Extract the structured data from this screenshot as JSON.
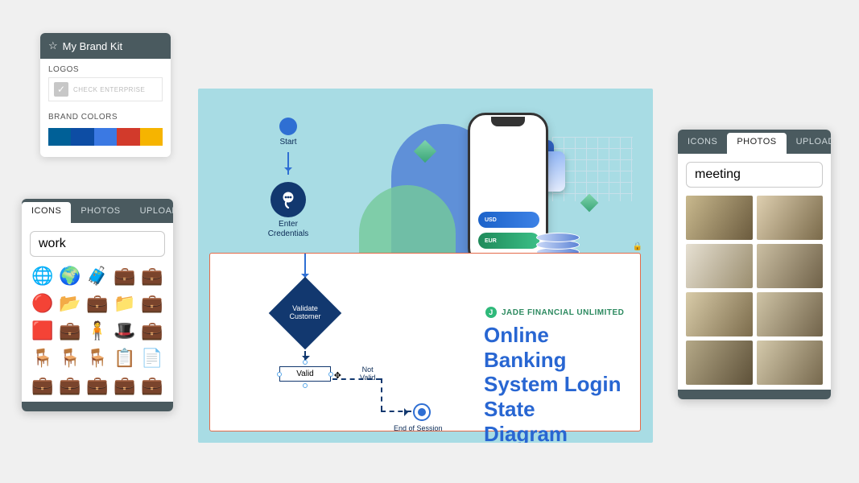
{
  "brandkit": {
    "title": "My Brand Kit",
    "section_logos": "LOGOS",
    "logo_caption": "CHECK ENTERPRISE",
    "section_colors": "BRAND COLORS",
    "colors": [
      "#006097",
      "#0d4da4",
      "#3b79e3",
      "#d23a2b",
      "#f6b400"
    ]
  },
  "icons_panel": {
    "tabs": {
      "icons": "ICONS",
      "photos": "PHOTOS",
      "uploads": "UPLOADS"
    },
    "active_tab": "ICONS",
    "search_value": "work",
    "grid_glyphs": [
      "🌐",
      "🌍",
      "🧳",
      "💼",
      "💼",
      "🔴",
      "📂",
      "💼",
      "📁",
      "💼",
      "🟥",
      "💼",
      "🧍",
      "🎩",
      "💼",
      "🪑",
      "🪑",
      "🪑",
      "📋",
      "📄",
      "💼",
      "💼",
      "💼",
      "💼",
      "💼"
    ]
  },
  "photos_panel": {
    "tabs": {
      "icons": "ICONS",
      "photos": "PHOTOS",
      "uploads": "UPLOADS"
    },
    "active_tab": "PHOTOS",
    "search_value": "meeting",
    "thumb_colors": [
      "linear-gradient(120deg,#c9b98e,#6b5b3e)",
      "linear-gradient(120deg,#decfb0,#7a6a4a)",
      "linear-gradient(120deg,#e6e0d2,#9a8d6e)",
      "linear-gradient(120deg,#cbbfa3,#6f6148)",
      "linear-gradient(120deg,#d8cba8,#7c6c4c)",
      "linear-gradient(120deg,#cfc4a6,#71634a)",
      "linear-gradient(120deg,#b4a887,#5e5139)",
      "linear-gradient(120deg,#d4c9ab,#76684d)"
    ]
  },
  "canvas": {
    "background_color": "#a8dce4",
    "phone_labels": {
      "usd": "USD",
      "eur": "EUR"
    },
    "card_border_color": "#e46b4a",
    "brand": {
      "name": "JADE FINANCIAL UNLIMITED",
      "logo_color": "#2fb97a"
    },
    "title": "Online Banking System Login State Diagram",
    "title_color": "#2866d2",
    "flow": {
      "accent_color": "#2f6fd3",
      "node_dark": "#12386f",
      "start": "Start",
      "enter": "Enter\nCredentials",
      "validate": "Validate Customer",
      "valid": "Valid",
      "not_valid": "Not\nValid",
      "end": "End of Session"
    }
  }
}
